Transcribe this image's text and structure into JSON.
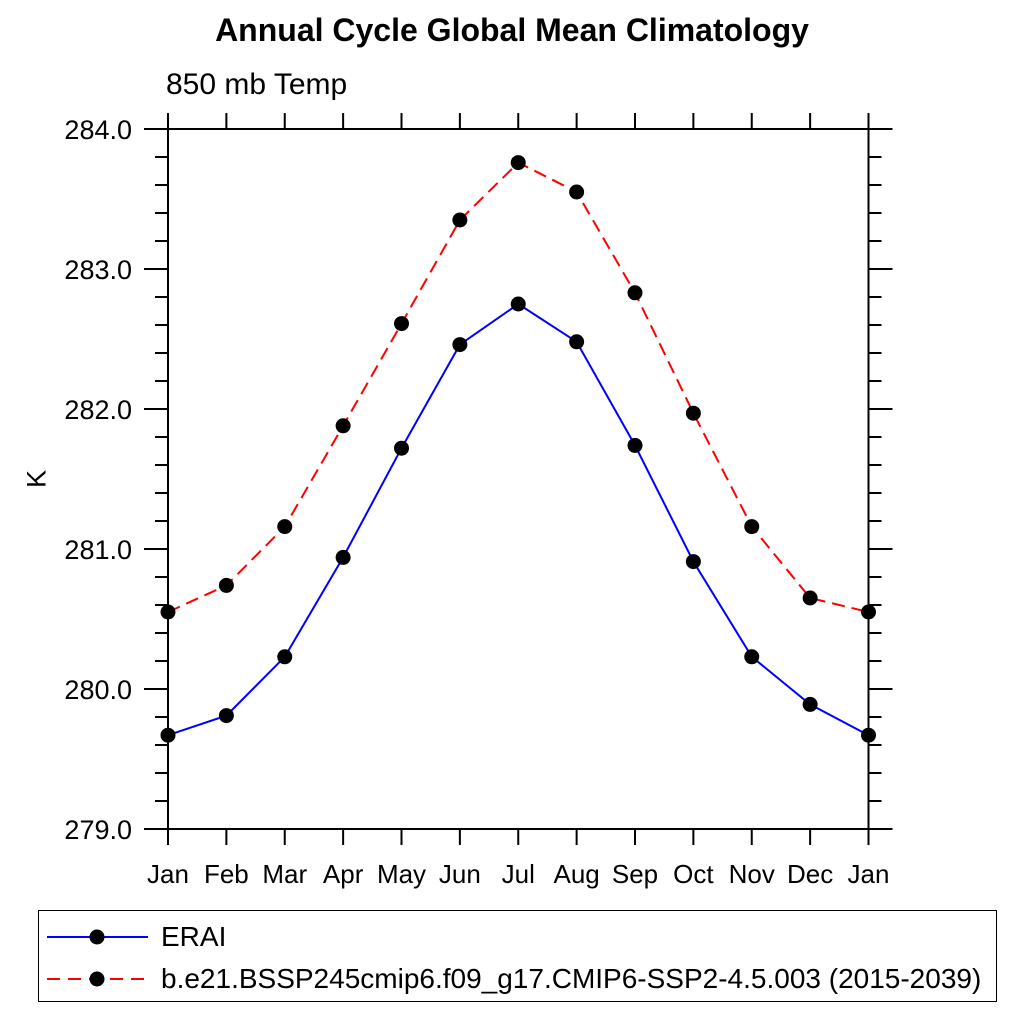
{
  "page": {
    "background": "#ffffff"
  },
  "header": {
    "title": "Annual Cycle Global Mean Climatology",
    "subtitle": "850 mb Temp"
  },
  "y_axis": {
    "label": "K",
    "tick_labels": [
      "279.0",
      "280.0",
      "281.0",
      "282.0",
      "283.0",
      "284.0"
    ]
  },
  "x_axis": {
    "tick_labels": [
      "Jan",
      "Feb",
      "Mar",
      "Apr",
      "May",
      "Jun",
      "Jul",
      "Aug",
      "Sep",
      "Oct",
      "Nov",
      "Dec",
      "Jan"
    ]
  },
  "legend": {
    "items": [
      {
        "label": "ERAI",
        "line_color": "#0000ff",
        "line_style": "solid",
        "marker": "filled-circle",
        "marker_color": "#000000"
      },
      {
        "label": "b.e21.BSSP245cmip6.f09_g17.CMIP6-SSP2-4.5.003 (2015-2039)",
        "line_color": "#ff0000",
        "line_style": "dashed",
        "marker": "filled-circle",
        "marker_color": "#000000"
      }
    ]
  },
  "chart_data": {
    "type": "line",
    "title": "Annual Cycle Global Mean Climatology",
    "subtitle": "850 mb Temp",
    "xlabel": "",
    "ylabel": "K",
    "categories": [
      "Jan",
      "Feb",
      "Mar",
      "Apr",
      "May",
      "Jun",
      "Jul",
      "Aug",
      "Sep",
      "Oct",
      "Nov",
      "Dec",
      "Jan"
    ],
    "ylim": [
      279.0,
      284.0
    ],
    "ytick_step": 1.0,
    "yminor_step": 0.2,
    "grid": false,
    "legend_position": "bottom",
    "frame": "box-with-outward-ticks",
    "series": [
      {
        "name": "ERAI",
        "color": "#0000ff",
        "line_style": "solid",
        "marker": "circle",
        "marker_color": "#000000",
        "values": [
          279.67,
          279.81,
          280.23,
          280.94,
          281.72,
          282.46,
          282.75,
          282.48,
          281.74,
          280.91,
          280.23,
          279.89,
          279.67
        ]
      },
      {
        "name": "b.e21.BSSP245cmip6.f09_g17.CMIP6-SSP2-4.5.003 (2015-2039)",
        "color": "#ff0000",
        "line_style": "dashed",
        "marker": "circle",
        "marker_color": "#000000",
        "values": [
          280.55,
          280.74,
          281.16,
          281.88,
          282.61,
          283.35,
          283.76,
          283.55,
          282.83,
          281.97,
          281.16,
          280.65,
          280.55
        ]
      }
    ]
  }
}
